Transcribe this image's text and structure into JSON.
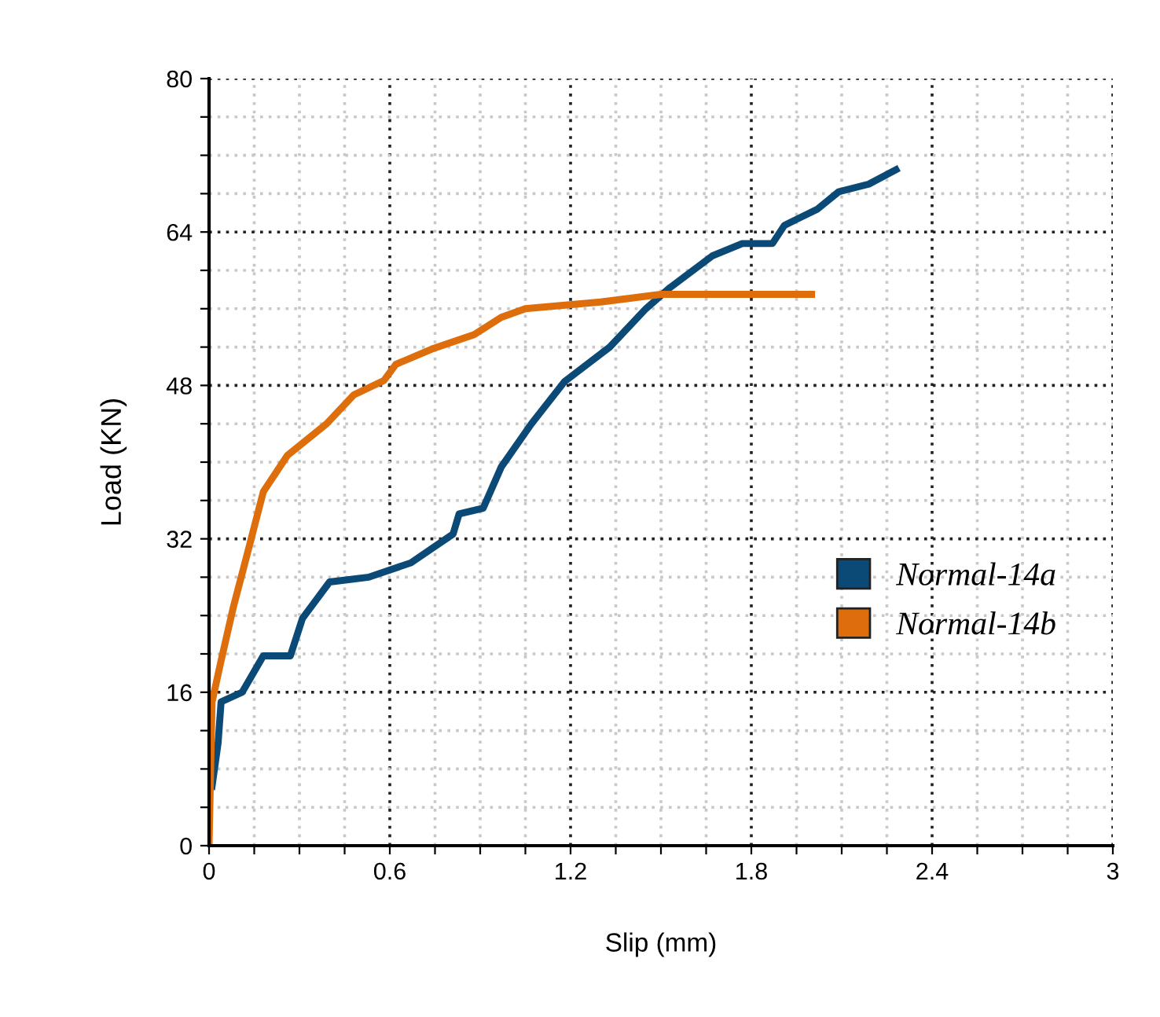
{
  "chart_data": {
    "type": "line",
    "xlabel": "Slip (mm)",
    "ylabel": "Load (KN)",
    "xlim": [
      0,
      3
    ],
    "ylim": [
      0,
      80
    ],
    "xticks": [
      0,
      {
        "value": 0.15,
        "label": null
      },
      {
        "value": 0.3,
        "label": null
      },
      {
        "value": 0.45,
        "label": null
      },
      0.6,
      {
        "value": 0.75,
        "label": null
      },
      {
        "value": 0.9,
        "label": null
      },
      {
        "value": 1.05,
        "label": null
      },
      1.2,
      {
        "value": 1.35,
        "label": null
      },
      {
        "value": 1.5,
        "label": null
      },
      {
        "value": 1.65,
        "label": null
      },
      1.8,
      {
        "value": 1.95,
        "label": null
      },
      {
        "value": 2.1,
        "label": null
      },
      {
        "value": 2.25,
        "label": null
      },
      2.4,
      {
        "value": 2.55,
        "label": null
      },
      {
        "value": 2.7,
        "label": null
      },
      {
        "value": 2.85,
        "label": null
      },
      3
    ],
    "yticks": [
      0,
      {
        "value": 4,
        "label": null
      },
      {
        "value": 8,
        "label": null
      },
      {
        "value": 12,
        "label": null
      },
      16,
      {
        "value": 20,
        "label": null
      },
      {
        "value": 24,
        "label": null
      },
      {
        "value": 28,
        "label": null
      },
      32,
      {
        "value": 36,
        "label": null
      },
      {
        "value": 40,
        "label": null
      },
      {
        "value": 44,
        "label": null
      },
      48,
      {
        "value": 52,
        "label": null
      },
      {
        "value": 56,
        "label": null
      },
      {
        "value": 60,
        "label": null
      },
      64,
      {
        "value": 68,
        "label": null
      },
      {
        "value": 72,
        "label": null
      },
      {
        "value": 76,
        "label": null
      },
      80
    ],
    "grid": true,
    "legend": "right",
    "marker": "none",
    "line_style": "solid",
    "series": [
      {
        "name": "Normal-14a",
        "color": "#0b4a76",
        "x": [
          0.01,
          0.03,
          0.04,
          0.11,
          0.18,
          0.27,
          0.31,
          0.4,
          0.53,
          0.67,
          0.81,
          0.83,
          0.91,
          0.97,
          1.07,
          1.18,
          1.33,
          1.45,
          1.53,
          1.67,
          1.77,
          1.87,
          1.91,
          2.02,
          2.09,
          2.19,
          2.28
        ],
        "values": [
          6.2,
          10.7,
          15,
          16,
          19.8,
          19.8,
          23.7,
          27.5,
          28,
          29.5,
          32.5,
          34.6,
          35.2,
          39.5,
          44,
          48.4,
          52,
          56,
          58.2,
          61.5,
          62.8,
          62.8,
          64.7,
          66.4,
          68.2,
          69,
          70.5
        ]
      },
      {
        "name": "Normal-14b",
        "color": "#de6e0c",
        "x": [
          0,
          0.01,
          0.04,
          0.08,
          0.13,
          0.18,
          0.26,
          0.39,
          0.48,
          0.58,
          0.62,
          0.74,
          0.88,
          0.97,
          1.05,
          1.3,
          1.5,
          2.0
        ],
        "values": [
          0,
          15,
          19.3,
          24.8,
          30.8,
          36.9,
          40.7,
          44,
          47,
          48.5,
          50.2,
          51.8,
          53.3,
          55.1,
          56,
          56.7,
          57.5,
          57.5
        ]
      }
    ]
  }
}
